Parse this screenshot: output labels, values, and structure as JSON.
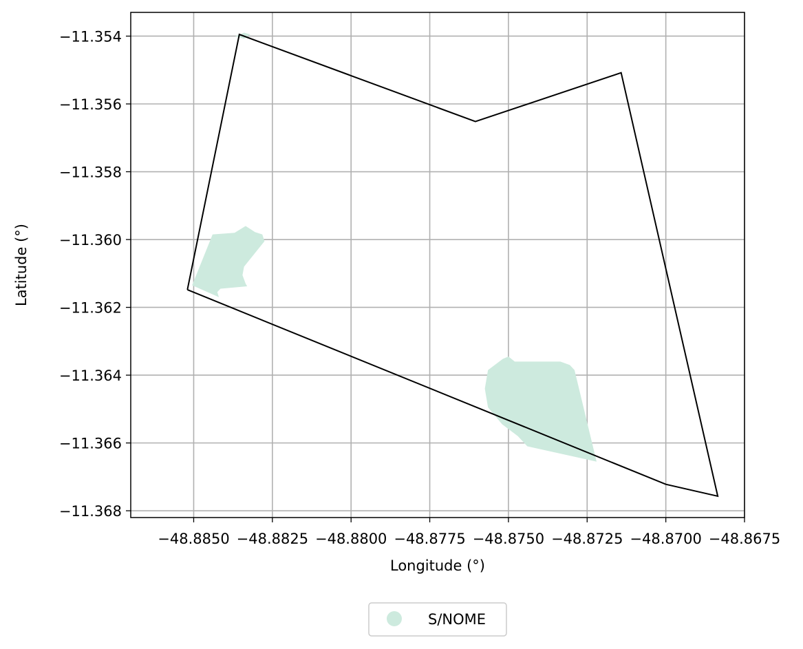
{
  "chart_data": {
    "type": "map",
    "xlabel": "Longitude (°)",
    "ylabel": "Latitude (°)",
    "xlim": [
      -48.887,
      -48.8675
    ],
    "ylim": [
      -11.3682,
      -11.3533
    ],
    "grid": true,
    "x_ticks": [
      "−48.8850",
      "−48.8825",
      "−48.8800",
      "−48.8775",
      "−48.8750",
      "−48.8725",
      "−48.8700",
      "−48.8675"
    ],
    "x_tick_values": [
      -48.885,
      -48.8825,
      -48.88,
      -48.8775,
      -48.875,
      -48.8725,
      -48.87,
      -48.8675
    ],
    "y_ticks": [
      "−11.354",
      "−11.356",
      "−11.358",
      "−11.360",
      "−11.362",
      "−11.364",
      "−11.366",
      "−11.368"
    ],
    "y_tick_values": [
      -11.354,
      -11.356,
      -11.358,
      -11.36,
      -11.362,
      -11.364,
      -11.366,
      -11.368
    ],
    "boundary": {
      "color": "#000000",
      "coordinates": [
        [
          -48.8852,
          -11.36148
        ],
        [
          -48.88355,
          -11.35395
        ],
        [
          -48.87605,
          -11.35652
        ],
        [
          -48.87142,
          -11.35508
        ],
        [
          -48.86835,
          -11.36757
        ],
        [
          -48.87,
          -11.36722
        ],
        [
          -48.8852,
          -11.36148
        ]
      ]
    },
    "areas": [
      {
        "name": "S/NOME",
        "color": "#cdeade",
        "polygons": [
          [
            [
              -48.88505,
              -11.36135
            ],
            [
              -48.8844,
              -11.35985
            ],
            [
              -48.8837,
              -11.3598
            ],
            [
              -48.88335,
              -11.3596
            ],
            [
              -48.88305,
              -11.35978
            ],
            [
              -48.88282,
              -11.35985
            ],
            [
              -48.88275,
              -11.36005
            ],
            [
              -48.8834,
              -11.3608
            ],
            [
              -48.88345,
              -11.36105
            ],
            [
              -48.88335,
              -11.3613
            ],
            [
              -48.8833,
              -11.36138
            ],
            [
              -48.88415,
              -11.36145
            ],
            [
              -48.88425,
              -11.36155
            ],
            [
              -48.8842,
              -11.3617
            ]
          ],
          [
            [
              -48.87565,
              -11.36385
            ],
            [
              -48.87518,
              -11.36352
            ],
            [
              -48.875,
              -11.36345
            ],
            [
              -48.8748,
              -11.3636
            ],
            [
              -48.87335,
              -11.3636
            ],
            [
              -48.87305,
              -11.3637
            ],
            [
              -48.8729,
              -11.36385
            ],
            [
              -48.8722,
              -11.36655
            ],
            [
              -48.8744,
              -11.3661
            ],
            [
              -48.8747,
              -11.3658
            ],
            [
              -48.8752,
              -11.36545
            ],
            [
              -48.87565,
              -11.36495
            ],
            [
              -48.87575,
              -11.3644
            ]
          ],
          [
            [
              -48.88368,
              -11.354
            ],
            [
              -48.8834,
              -11.35408
            ],
            [
              -48.8832,
              -11.35395
            ],
            [
              -48.8834,
              -11.3539
            ]
          ]
        ]
      }
    ],
    "legend": {
      "placement": "bottom-center",
      "entries": [
        {
          "label": "S/NOME",
          "color": "#cdeade",
          "marker": "circle"
        }
      ]
    }
  }
}
